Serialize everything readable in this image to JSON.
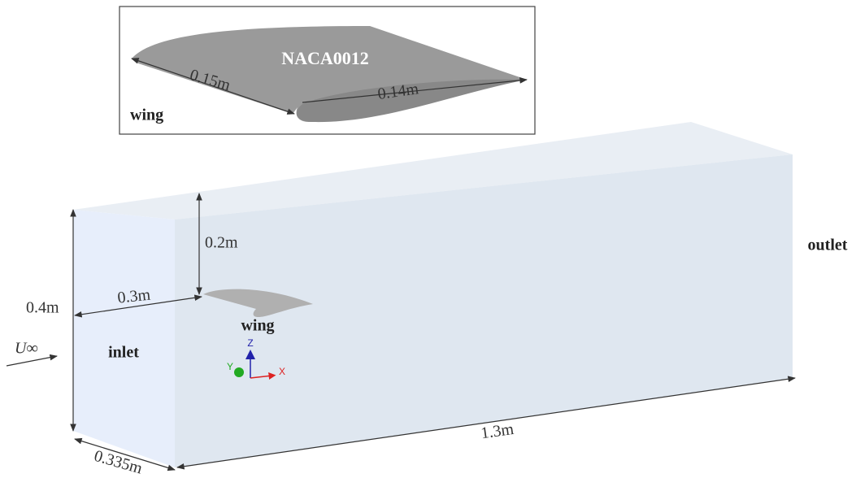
{
  "inset": {
    "title": "NACA0012",
    "label": "wing",
    "chord_dimension": "0.15m",
    "span_dimension": "0.14m"
  },
  "domain": {
    "height_above_wing": "0.2m",
    "inlet_to_wing": "0.3m",
    "height": "0.4m",
    "wing_label": "wing",
    "inlet_label": "inlet",
    "outlet_label": "outlet",
    "freestream": "U∞",
    "length": "1.3m",
    "width": "0.335m"
  },
  "axes": {
    "z": "Z",
    "y": "Y",
    "x": "X"
  }
}
